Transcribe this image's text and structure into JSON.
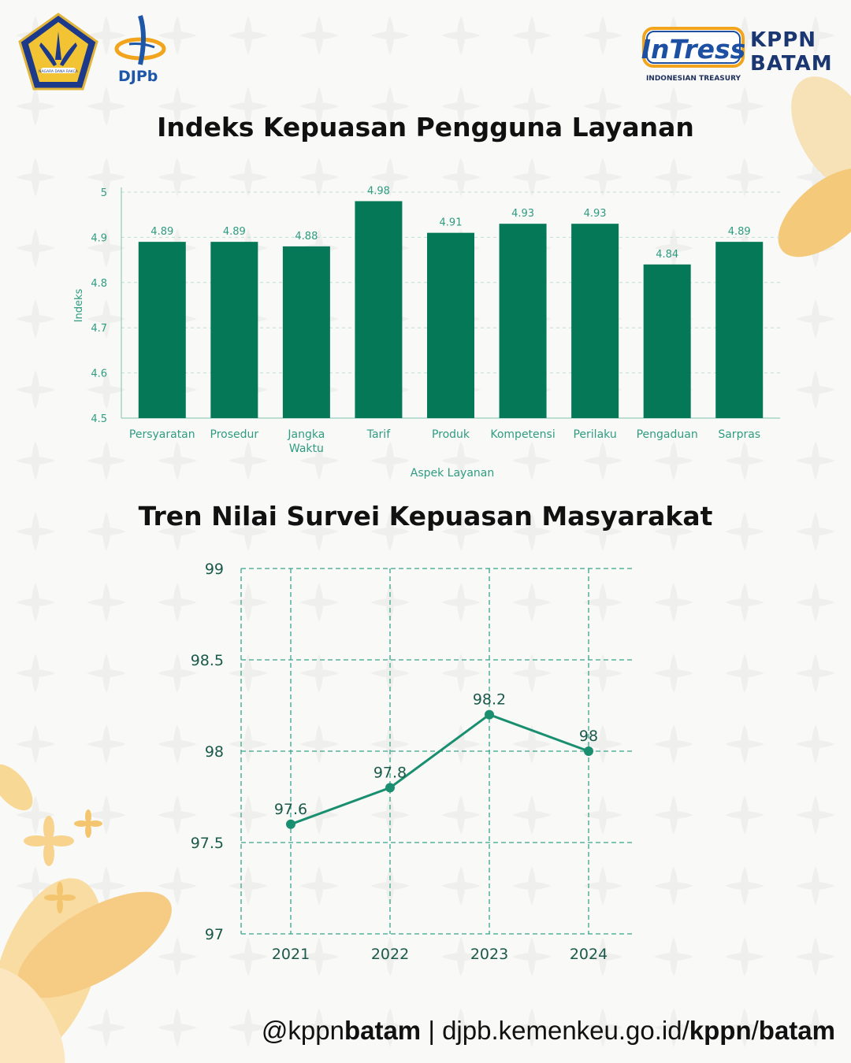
{
  "header": {
    "djpb_label": "DJPb",
    "seal_text": "NAGARA DANA RAKCA",
    "intress_logo": "InTress",
    "intress_sub": "INDONESIAN TREASURY",
    "kppn_line1": "KPPN",
    "kppn_line2": "BATAM"
  },
  "colors": {
    "bar": "#047857",
    "accent": "#1a9a7c",
    "grid": "#3aa58c",
    "title": "#111111"
  },
  "chart_data": [
    {
      "type": "bar",
      "title": "Indeks Kepuasan Pengguna Layanan",
      "xlabel": "Aspek Layanan",
      "ylabel": "Indeks",
      "ylim": [
        4.5,
        5
      ],
      "yticks": [
        "4.5",
        "4.6",
        "4.7",
        "4.8",
        "4.9",
        "5"
      ],
      "categories": [
        "Persyaratan",
        "Prosedur",
        "Jangka Waktu",
        "Tarif",
        "Produk",
        "Kompetensi",
        "Perilaku",
        "Pengaduan",
        "Sarpras"
      ],
      "category_lines": [
        [
          "Persyaratan"
        ],
        [
          "Prosedur"
        ],
        [
          "Jangka",
          "Waktu"
        ],
        [
          "Tarif"
        ],
        [
          "Produk"
        ],
        [
          "Kompetensi"
        ],
        [
          "Perilaku"
        ],
        [
          "Pengaduan"
        ],
        [
          "Sarpras"
        ]
      ],
      "values": [
        4.89,
        4.89,
        4.88,
        4.98,
        4.91,
        4.93,
        4.93,
        4.84,
        4.89
      ],
      "value_labels": [
        "4.89",
        "4.89",
        "4.88",
        "4.98",
        "4.91",
        "4.93",
        "4.93",
        "4.84",
        "4.89"
      ]
    },
    {
      "type": "line",
      "title": "Tren Nilai Survei Kepuasan Masyarakat",
      "x": [
        "2021",
        "2022",
        "2023",
        "2024"
      ],
      "values": [
        97.6,
        97.8,
        98.2,
        98
      ],
      "value_labels": [
        "97.6",
        "97.8",
        "98.2",
        "98"
      ],
      "ylim": [
        97,
        99
      ],
      "yticks": [
        "97",
        "97.5",
        "98",
        "98.5",
        "99"
      ],
      "grid": true
    }
  ],
  "footer": {
    "handle_prefix": "@kppn",
    "handle_bold": "batam",
    "separator": " | ",
    "url_plain": "djpb.kemenkeu.go.id/",
    "url_bold1": "kppn",
    "url_slash": "/",
    "url_bold2": "batam"
  }
}
